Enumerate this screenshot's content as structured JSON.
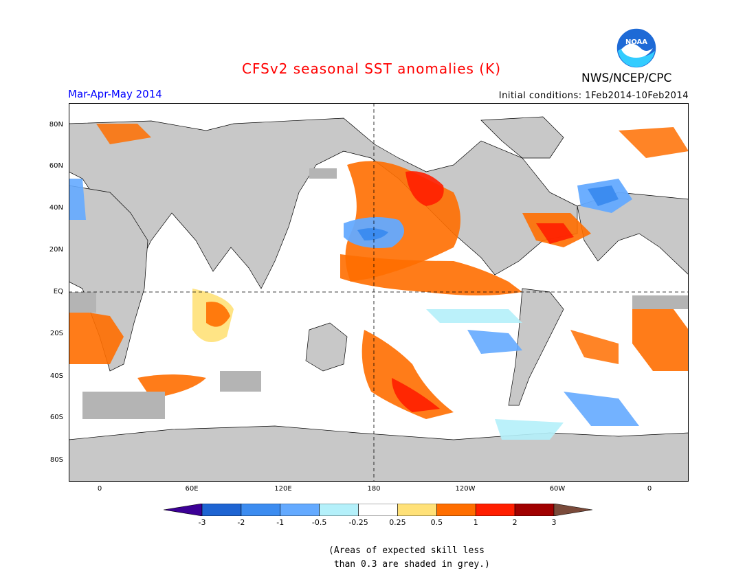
{
  "title": "CFSv2 seasonal SST anomalies (K)",
  "season": "Mar-Apr-May 2014",
  "initial_conditions": "Initial conditions: 1Feb2014-10Feb2014",
  "agency": "NWS/NCEP/CPC",
  "logo_text": "NOAA",
  "colors": {
    "title": "#ff0000",
    "season": "#0000ff",
    "land": "#c8c8c8",
    "low_skill": "#b4b4b4"
  },
  "lat_labels": [
    "80N",
    "60N",
    "40N",
    "20N",
    "EQ",
    "20S",
    "40S",
    "60S",
    "80S"
  ],
  "lon_labels": [
    "0",
    "60E",
    "120E",
    "180",
    "120W",
    "60W",
    "0"
  ],
  "colorbar": {
    "ticks": [
      "-3",
      "-2",
      "-1",
      "-0.5",
      "-0.25",
      "0.25",
      "0.5",
      "1",
      "2",
      "3"
    ],
    "colors": [
      "#3c0096",
      "#1e64d2",
      "#3c8cf0",
      "#64aaff",
      "#b4f0fa",
      "#ffffff",
      "#ffe178",
      "#ff6e00",
      "#ff1e00",
      "#a00000",
      "#7a4a3a"
    ]
  },
  "note_lines": [
    "(Areas of expected skill less",
    " than 0.3 are shaded in grey.)"
  ]
}
